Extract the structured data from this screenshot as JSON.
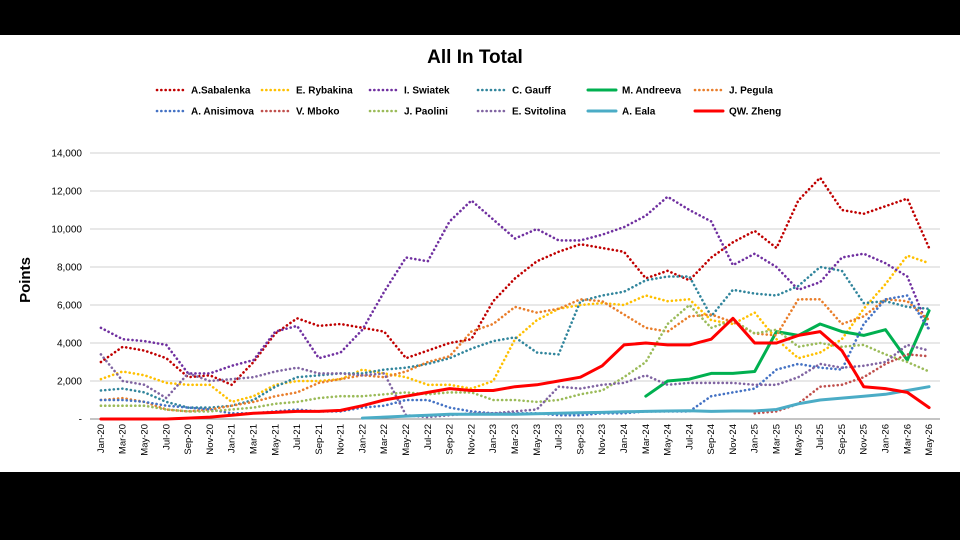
{
  "chart_data": {
    "type": "line",
    "title": "All In Total",
    "ylabel": "Points",
    "xlabel": "",
    "ylim": [
      0,
      14000
    ],
    "yticks": [
      "-",
      "2,000",
      "4,000",
      "6,000",
      "8,000",
      "10,000",
      "12,000",
      "14,000"
    ],
    "x_labels": [
      "Jan-20",
      "Mar-20",
      "May-20",
      "Jul-20",
      "Sep-20",
      "Nov-20",
      "Jan-21",
      "Mar-21",
      "May-21",
      "Jul-21",
      "Sep-21",
      "Nov-21",
      "Jan-22",
      "Mar-22",
      "May-22",
      "Jul-22",
      "Sep-22",
      "Nov-22",
      "Jan-23",
      "Mar-23",
      "May-23",
      "Jul-23",
      "Sep-23",
      "Nov-23",
      "Jan-24",
      "Mar-24",
      "May-24",
      "Jul-24",
      "Sep-24",
      "Nov-24",
      "Jan-25",
      "Mar-25",
      "May-25",
      "Jul-25",
      "Sep-25",
      "Nov-25",
      "Jan-26",
      "Mar-26",
      "May-26"
    ],
    "grid": true,
    "legend_position": "top",
    "series": [
      {
        "name": "A.Sabalenka",
        "color": "#c00000",
        "style": "dotted",
        "values": [
          3000,
          3800,
          3600,
          3200,
          2200,
          2300,
          1800,
          3000,
          4500,
          5300,
          4900,
          5000,
          4800,
          4600,
          3200,
          3600,
          4000,
          4200,
          6200,
          7400,
          8300,
          8800,
          9200,
          9000,
          8800,
          7400,
          7800,
          7300,
          8500,
          9300,
          9900,
          9000,
          11500,
          12700,
          11000,
          10800,
          11200,
          11600,
          9000
        ]
      },
      {
        "name": "E. Rybakina",
        "color": "#ffc000",
        "style": "dotted",
        "values": [
          2100,
          2500,
          2300,
          1900,
          1800,
          1800,
          900,
          1200,
          1800,
          2000,
          2000,
          2100,
          2600,
          2400,
          2200,
          1800,
          1800,
          1600,
          2000,
          4200,
          5200,
          5800,
          6000,
          6100,
          6000,
          6500,
          6200,
          6300,
          5200,
          5000,
          5600,
          4200,
          3200,
          3500,
          4200,
          5800,
          7100,
          8600,
          8200
        ]
      },
      {
        "name": "I. Swiatek",
        "color": "#7030a0",
        "style": "dotted",
        "values": [
          4800,
          4200,
          4100,
          3900,
          2400,
          2400,
          2800,
          3100,
          4600,
          4900,
          3200,
          3500,
          4700,
          6700,
          8500,
          8300,
          10400,
          11500,
          10500,
          9500,
          10000,
          9400,
          9400,
          9700,
          10100,
          10700,
          11700,
          11000,
          10400,
          8100,
          8700,
          8000,
          6800,
          7200,
          8500,
          8700,
          8200,
          7500,
          4700
        ]
      },
      {
        "name": "C. Gauff",
        "color": "#31859c",
        "style": "dotted",
        "values": [
          1500,
          1600,
          1400,
          900,
          600,
          600,
          700,
          1000,
          1700,
          2200,
          2300,
          2400,
          2400,
          2600,
          2700,
          2900,
          3200,
          3700,
          4100,
          4300,
          3500,
          3400,
          6200,
          6500,
          6700,
          7300,
          7500,
          7500,
          5400,
          6800,
          6600,
          6500,
          7000,
          8000,
          7800,
          6100,
          6200,
          5900,
          5800
        ]
      },
      {
        "name": "M. Andreeva",
        "color": "#00b050",
        "style": "solid",
        "values": [
          null,
          null,
          null,
          null,
          null,
          null,
          null,
          null,
          null,
          null,
          null,
          null,
          null,
          null,
          null,
          null,
          null,
          null,
          null,
          null,
          null,
          null,
          null,
          null,
          null,
          1200,
          2000,
          2100,
          2400,
          2400,
          2500,
          4600,
          4400,
          5000,
          4600,
          4400,
          4700,
          3100,
          5700
        ]
      },
      {
        "name": "J. Pegula",
        "color": "#e97e2b",
        "style": "dotted",
        "values": [
          1000,
          1100,
          900,
          500,
          400,
          500,
          700,
          900,
          1200,
          1400,
          1900,
          2100,
          2300,
          2200,
          2500,
          3000,
          3300,
          4600,
          5000,
          5900,
          5600,
          5800,
          6300,
          6200,
          5500,
          4800,
          4600,
          5400,
          5500,
          5100,
          4500,
          4400,
          6300,
          6300,
          5000,
          5400,
          6300,
          6200,
          5200
        ]
      },
      {
        "name": "A. Anisimova",
        "color": "#4472c4",
        "style": "dotted",
        "values": [
          1000,
          1000,
          900,
          700,
          600,
          500,
          300,
          300,
          400,
          500,
          400,
          400,
          600,
          700,
          1000,
          1000,
          600,
          400,
          300,
          300,
          300,
          200,
          200,
          300,
          300,
          400,
          400,
          400,
          1200,
          1400,
          1600,
          2600,
          2900,
          2700,
          2600,
          5000,
          6300,
          6500,
          4700
        ]
      },
      {
        "name": "V. Mboko",
        "color": "#c0504d",
        "style": "dotted",
        "values": [
          null,
          null,
          null,
          null,
          null,
          null,
          null,
          null,
          null,
          null,
          null,
          null,
          null,
          null,
          null,
          null,
          null,
          null,
          null,
          null,
          null,
          null,
          null,
          null,
          null,
          null,
          null,
          null,
          null,
          null,
          300,
          400,
          800,
          1700,
          1800,
          2200,
          2900,
          3400,
          3300
        ]
      },
      {
        "name": "J. Paolini",
        "color": "#9bbb59",
        "style": "dotted",
        "values": [
          700,
          700,
          700,
          500,
          400,
          400,
          500,
          600,
          800,
          900,
          1100,
          1200,
          1200,
          1300,
          1400,
          1300,
          1400,
          1400,
          1000,
          1000,
          900,
          1000,
          1300,
          1500,
          2200,
          3000,
          5000,
          6000,
          4800,
          5200,
          4500,
          4700,
          3800,
          4000,
          3800,
          3900,
          3400,
          3000,
          2500
        ]
      },
      {
        "name": "E. Svitolina",
        "color": "#8064a2",
        "style": "dotted",
        "values": [
          3400,
          2000,
          1800,
          1100,
          2400,
          2000,
          2100,
          2200,
          2500,
          2700,
          2400,
          2400,
          2300,
          2400,
          200,
          100,
          200,
          300,
          300,
          400,
          500,
          1700,
          1600,
          1800,
          1900,
          2300,
          1800,
          1900,
          1900,
          1900,
          1800,
          1800,
          2200,
          2900,
          2700,
          2800,
          3000,
          3900,
          3600
        ]
      },
      {
        "name": "A. Eala",
        "color": "#4bacc6",
        "style": "solid",
        "values": [
          null,
          null,
          null,
          null,
          null,
          null,
          null,
          null,
          null,
          null,
          null,
          null,
          50,
          100,
          150,
          200,
          250,
          250,
          250,
          250,
          280,
          300,
          330,
          350,
          380,
          400,
          420,
          430,
          400,
          420,
          420,
          500,
          800,
          1000,
          1100,
          1200,
          1300,
          1500,
          1700
        ]
      },
      {
        "name": "QW. Zheng",
        "color": "#ff0000",
        "style": "solid",
        "values": [
          0,
          0,
          0,
          0,
          50,
          100,
          200,
          300,
          350,
          400,
          400,
          450,
          700,
          1000,
          1200,
          1400,
          1600,
          1500,
          1500,
          1700,
          1800,
          2000,
          2200,
          2800,
          3900,
          4000,
          3900,
          3900,
          4200,
          5300,
          4000,
          4000,
          4400,
          4600,
          3600,
          1700,
          1600,
          1400,
          600
        ]
      }
    ]
  }
}
